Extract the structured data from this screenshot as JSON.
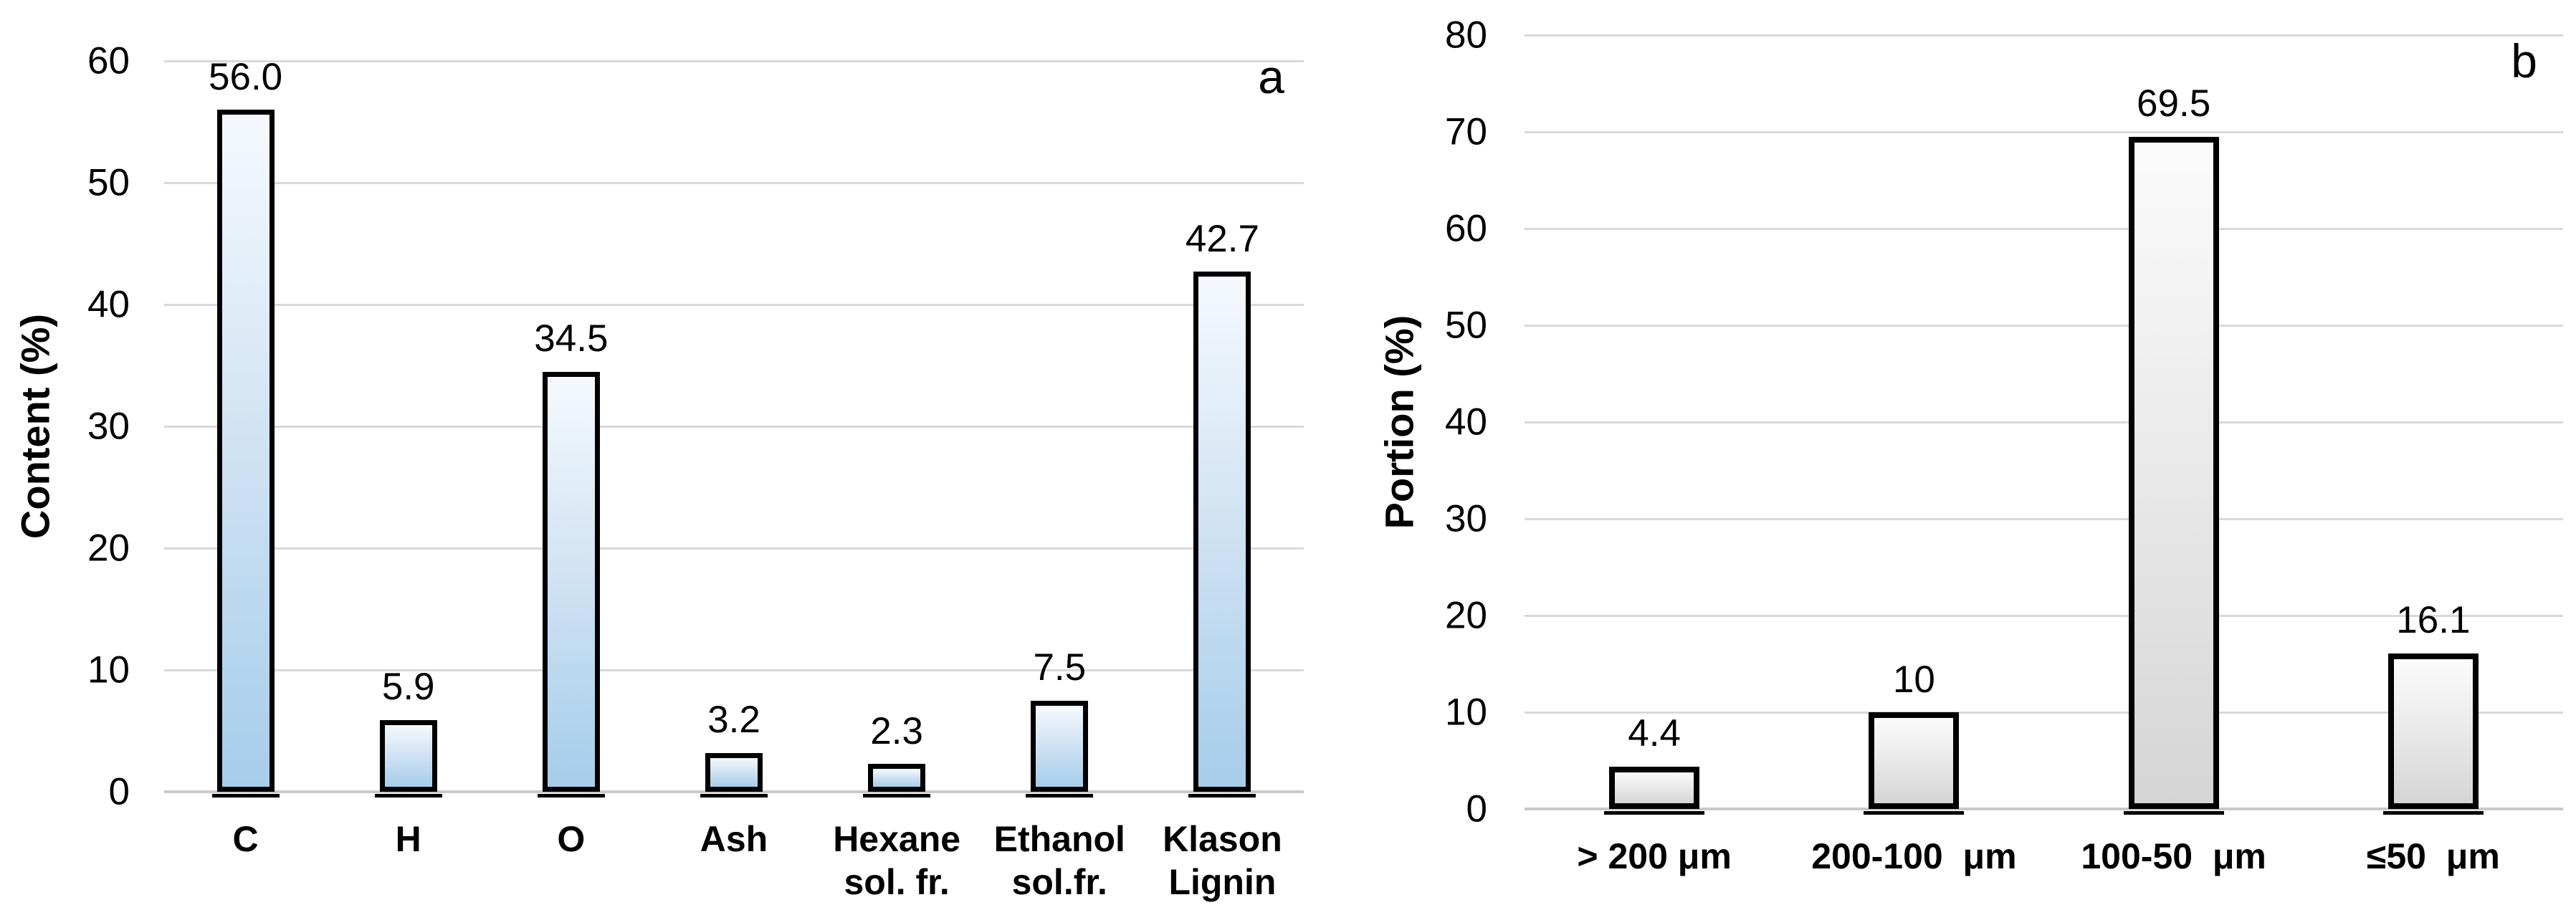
{
  "figure": {
    "background": "#ffffff"
  },
  "style": {
    "grid_color": "#d9d9d9",
    "baseline_color": "#c9c9c9",
    "text_color": "#000000"
  },
  "chart_data": [
    {
      "type": "bar",
      "panel_label": "a",
      "title": "",
      "xlabel": "",
      "ylabel": "Content (%)",
      "ylim": [
        0,
        60
      ],
      "yticks": [
        0,
        10,
        20,
        30,
        40,
        50,
        60
      ],
      "grid": true,
      "legend": "none",
      "categories": [
        "C",
        "H",
        "O",
        "Ash",
        "Hexane\nsol. fr.",
        "Ethanol\nsol.fr.",
        "Klason\nLignin"
      ],
      "values": [
        56.0,
        5.9,
        34.5,
        3.2,
        2.3,
        7.5,
        42.7
      ],
      "value_labels": [
        "56.0",
        "5.9",
        "34.5",
        "3.2",
        "2.3",
        "7.5",
        "42.7"
      ],
      "bar_fill_stops": [
        "#f5f9fd",
        "#cfe2f3",
        "#a6cdea"
      ],
      "bar_border_color": "#000000"
    },
    {
      "type": "bar",
      "panel_label": "b",
      "title": "",
      "xlabel": "",
      "ylabel": "Portion (%)",
      "ylim": [
        0,
        80
      ],
      "yticks": [
        0,
        10,
        20,
        30,
        40,
        50,
        60,
        70,
        80
      ],
      "grid": true,
      "legend": "none",
      "categories": [
        "> 200 μm",
        "200-100  μm",
        "100-50  μm",
        "≤50  μm"
      ],
      "values": [
        4.4,
        10,
        69.5,
        16.1
      ],
      "value_labels": [
        "4.4",
        "10",
        "69.5",
        "16.1"
      ],
      "bar_fill_stops": [
        "#fbfbfc",
        "#e9e9ea",
        "#d5d5d6"
      ],
      "bar_border_color": "#000000"
    }
  ]
}
